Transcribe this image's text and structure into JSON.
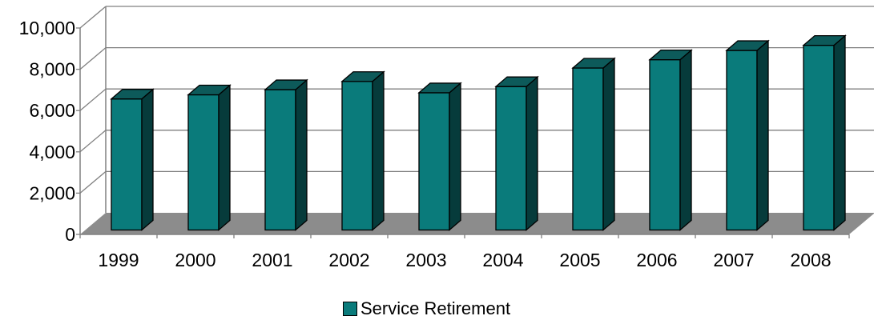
{
  "chart_data": {
    "type": "bar",
    "title": "",
    "xlabel": "",
    "ylabel": "",
    "categories": [
      "1999",
      "2000",
      "2001",
      "2002",
      "2003",
      "2004",
      "2005",
      "2006",
      "2007",
      "2008"
    ],
    "series": [
      {
        "name": "Service Retirement",
        "values": [
          6350,
          6550,
          6800,
          7200,
          6650,
          6950,
          7850,
          8250,
          8700,
          8950
        ]
      }
    ],
    "ylim": [
      0,
      10000
    ],
    "yticks": [
      "0",
      "2,000",
      "4,000",
      "6,000",
      "8,000",
      "10,000"
    ],
    "grid": true,
    "style": "3d-column",
    "legend_position": "bottom",
    "colors": {
      "bar_front": "#0a7b7b",
      "bar_top": "#0d5a5a",
      "bar_side": "#063b3b",
      "floor": "#8c8c8c",
      "grid": "#808080",
      "axis": "#808080"
    }
  }
}
